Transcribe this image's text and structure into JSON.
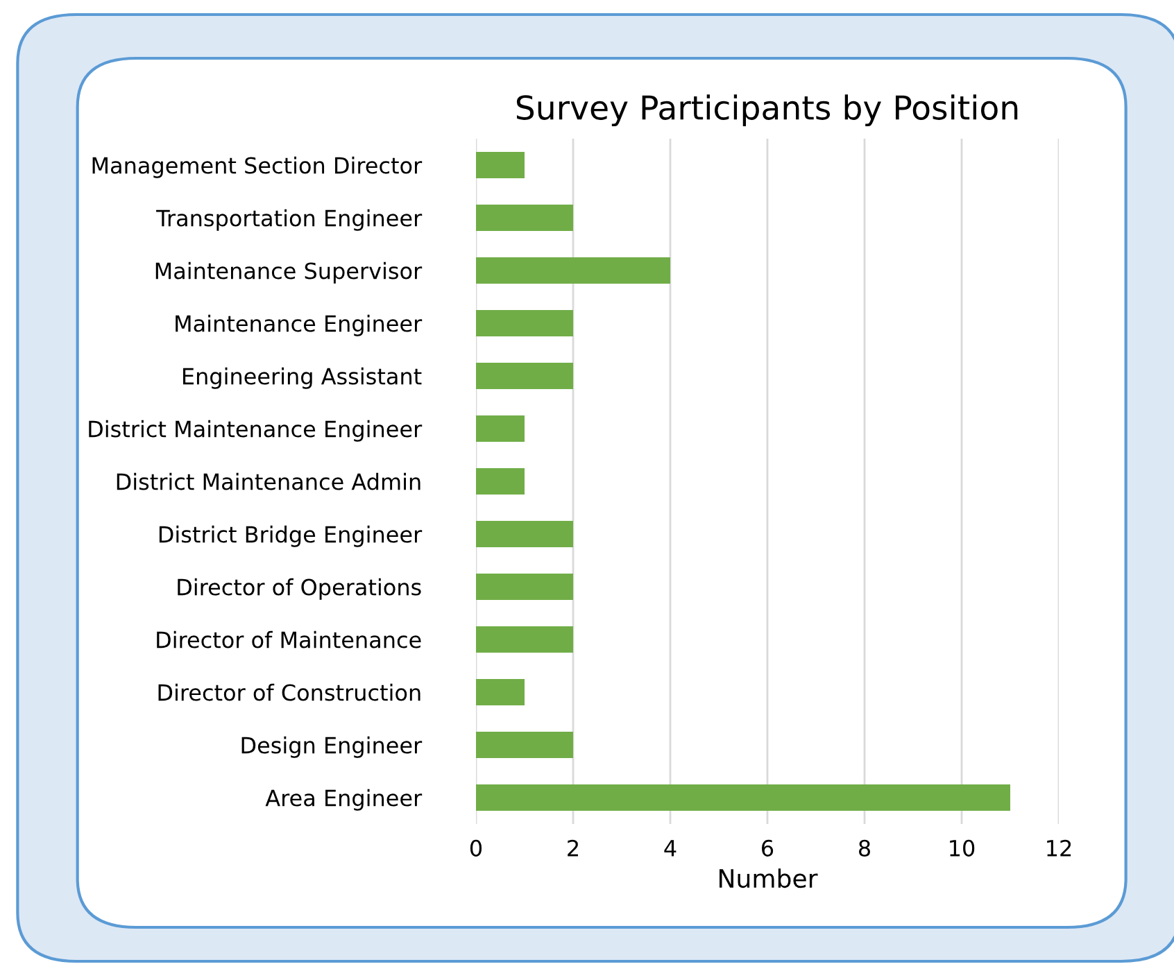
{
  "chart_data": {
    "type": "bar",
    "orientation": "horizontal",
    "title": "Survey Participants by Position",
    "xlabel": "Number",
    "categories": [
      "Management Section Director",
      "Transportation Engineer",
      "Maintenance Supervisor",
      "Maintenance Engineer",
      "Engineering Assistant",
      "District Maintenance Engineer",
      "District Maintenance Admin",
      "District Bridge Engineer",
      "Director of Operations",
      "Director of Maintenance",
      "Director of Construction",
      "Design Engineer",
      "Area Engineer"
    ],
    "values": [
      1,
      2,
      4,
      2,
      2,
      1,
      1,
      2,
      2,
      2,
      1,
      2,
      11
    ],
    "color": "#70ad47",
    "xlim": [
      0,
      12
    ],
    "xticks": [
      0,
      2,
      4,
      6,
      8,
      10,
      12
    ],
    "grid": "x"
  }
}
